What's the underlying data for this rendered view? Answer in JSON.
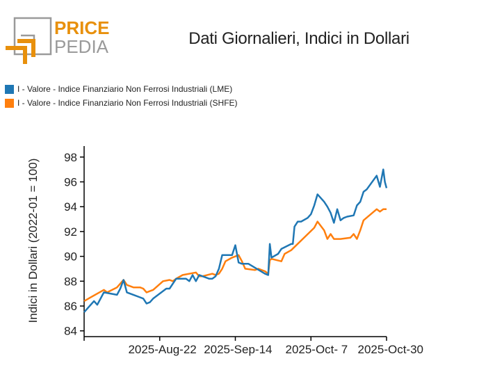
{
  "logo": {
    "line1": "PRICE",
    "line2": "PEDIA"
  },
  "colors": {
    "lme": "#1f77b4",
    "shfe": "#ff7f0e",
    "logo_orange": "#e8900c",
    "logo_gray": "#9a9a9a"
  },
  "chart_data": {
    "type": "line",
    "title": "Dati Giornalieri, Indici in Dollari",
    "xlabel": "",
    "ylabel": "Indici in Dollari (2022-01 = 100)",
    "ylim": [
      83.8,
      98.8
    ],
    "yticks": [
      84,
      86,
      88,
      90,
      92,
      94,
      96,
      98
    ],
    "ytick_labels": [
      "84",
      "86",
      "88",
      "90",
      "92",
      "94",
      "96",
      "98"
    ],
    "x_unit": "days since 2025-Jul-30",
    "xlim": [
      0,
      92
    ],
    "xticks": [
      0,
      23,
      46,
      69,
      92
    ],
    "xtick_labels": [
      "",
      "2025-Aug-22",
      "2025-Sep-14",
      "2025-Oct- 7",
      "2025-Oct-30"
    ],
    "legend_position": "top-left",
    "grid": false,
    "series": [
      {
        "name": "I - Valore - Indice Finanziario Non Ferrosi Industriali (LME)",
        "color": "#1f77b4",
        "x": [
          0,
          3,
          4,
          6,
          10,
          11,
          12,
          13,
          15,
          17,
          18,
          19,
          20,
          21,
          25,
          26,
          28,
          31,
          32,
          33,
          34,
          35,
          38,
          39,
          40,
          41,
          42,
          43,
          45,
          46,
          47,
          48,
          49,
          50,
          55,
          56,
          56.5,
          57,
          59,
          60,
          63,
          63.5,
          64,
          65,
          66,
          68,
          69,
          70,
          71,
          73,
          74,
          75,
          76,
          77,
          78,
          79,
          80,
          82,
          83,
          84,
          85,
          86,
          89,
          90,
          91,
          91.5,
          92
        ],
        "values": [
          85.5,
          86.4,
          86.1,
          87.1,
          86.9,
          87.4,
          88.1,
          87.1,
          86.9,
          86.7,
          86.6,
          86.2,
          86.3,
          86.6,
          87.4,
          87.4,
          88.2,
          88.2,
          88.0,
          88.5,
          88.0,
          88.5,
          88.2,
          88.2,
          88.4,
          89.0,
          90.1,
          90.1,
          90.1,
          90.9,
          89.5,
          89.4,
          89.4,
          89.4,
          88.6,
          88.5,
          91.0,
          89.9,
          90.2,
          90.6,
          91.0,
          91.0,
          92.4,
          92.8,
          92.8,
          93.1,
          93.4,
          94.1,
          95.0,
          94.4,
          94.0,
          93.5,
          92.7,
          93.8,
          92.9,
          93.1,
          93.2,
          93.3,
          94.1,
          94.4,
          95.2,
          95.4,
          96.5,
          95.6,
          97.0,
          96.0,
          95.5
        ]
      },
      {
        "name": "I - Valore - Indice Finanziario Non Ferrosi Industriali (SHFE)",
        "color": "#ff7f0e",
        "x": [
          0,
          6,
          7,
          10,
          12,
          13,
          15,
          17,
          18,
          19,
          20,
          21,
          24,
          26,
          27,
          28,
          30,
          34,
          35,
          36,
          39,
          40,
          41,
          42,
          43,
          45,
          47,
          48,
          49,
          52,
          53,
          55,
          56,
          56.5,
          57,
          60,
          61,
          63,
          70,
          71,
          73,
          74,
          75,
          76,
          78,
          81,
          82,
          83,
          84,
          85,
          89,
          90,
          91,
          92
        ],
        "values": [
          86.4,
          87.3,
          87.1,
          87.5,
          88.1,
          87.7,
          87.5,
          87.5,
          87.4,
          87.1,
          87.2,
          87.3,
          88.0,
          88.1,
          88.0,
          88.2,
          88.5,
          88.7,
          88.4,
          88.4,
          88.6,
          88.5,
          88.6,
          89.0,
          89.6,
          89.9,
          90.1,
          89.6,
          89.0,
          88.9,
          89.0,
          88.8,
          88.6,
          89.7,
          89.8,
          89.6,
          90.2,
          90.5,
          92.3,
          92.8,
          92.1,
          91.4,
          91.8,
          91.4,
          91.4,
          91.5,
          91.8,
          91.4,
          92.1,
          92.9,
          93.8,
          93.6,
          93.8,
          93.8
        ]
      }
    ]
  }
}
